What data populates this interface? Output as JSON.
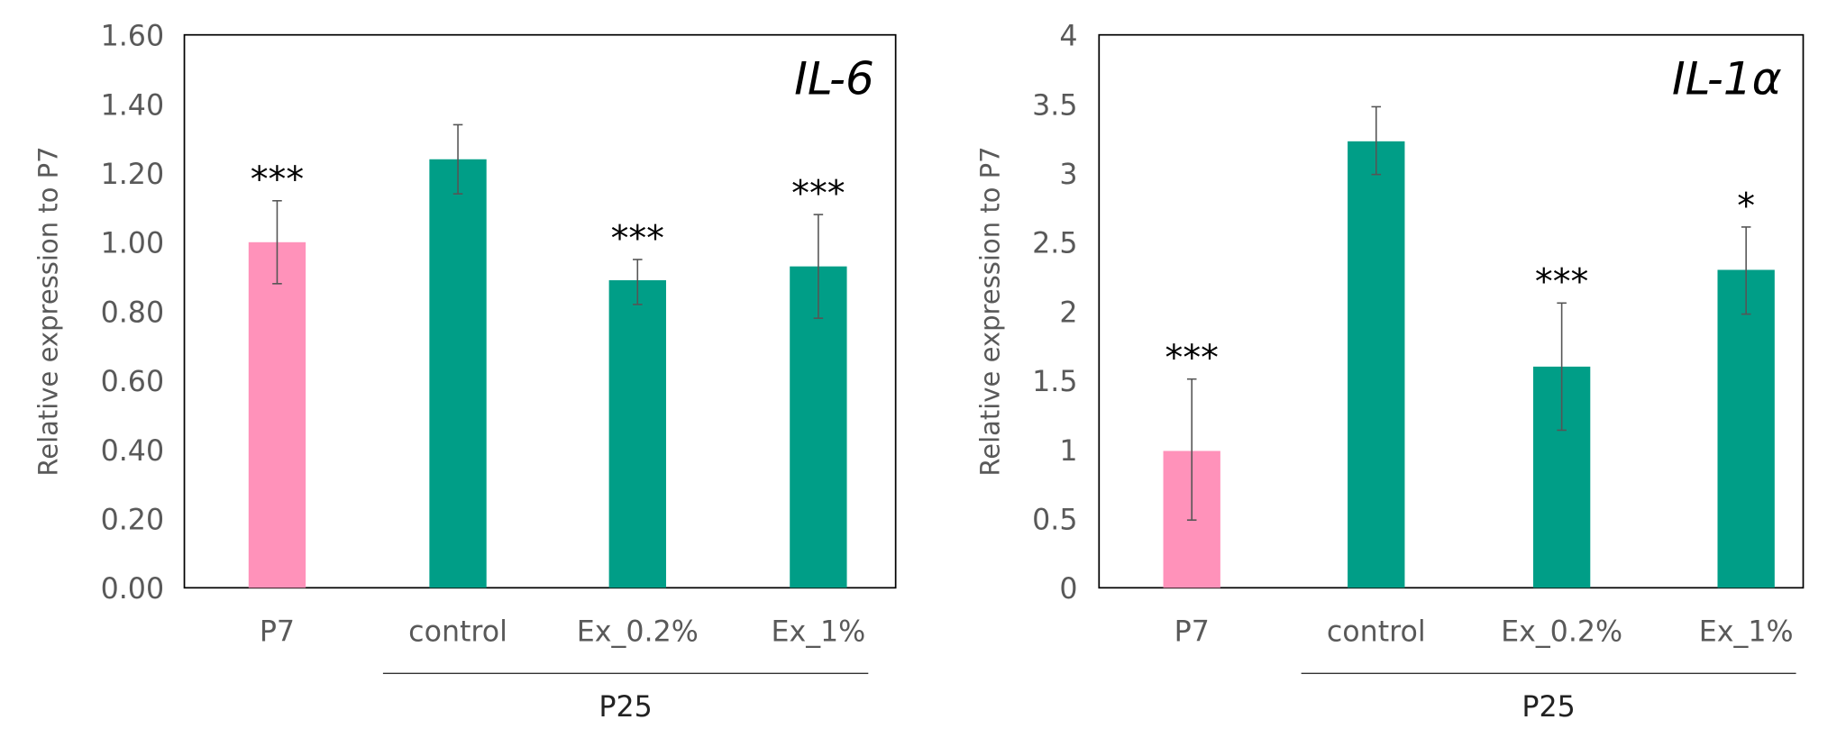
{
  "colors": {
    "reference": "#FF92BA",
    "treated": "#009E87",
    "error_bar": "#555555",
    "axis": "#000000"
  },
  "chart_data": [
    {
      "type": "bar",
      "title": "IL-6",
      "ylabel": "Relative expression to P7",
      "ylim": [
        0,
        1.6
      ],
      "yticks": [
        "0.00",
        "0.20",
        "0.40",
        "0.60",
        "0.80",
        "1.00",
        "1.20",
        "1.40",
        "1.60"
      ],
      "ytick_values": [
        0,
        0.2,
        0.4,
        0.6,
        0.8,
        1.0,
        1.2,
        1.4,
        1.6
      ],
      "categories": [
        "P7",
        "control",
        "Ex_0.2%",
        "Ex_1%"
      ],
      "group_label": "P25",
      "group_members": [
        "control",
        "Ex_0.2%",
        "Ex_1%"
      ],
      "values": [
        1.0,
        1.24,
        0.89,
        0.93
      ],
      "error_upper": [
        1.12,
        1.34,
        0.95,
        1.08
      ],
      "error_lower": [
        0.88,
        1.14,
        0.82,
        0.78
      ],
      "bar_colors": [
        "reference",
        "treated",
        "treated",
        "treated"
      ],
      "significance": [
        "***",
        "",
        "***",
        "***"
      ],
      "grid": false
    },
    {
      "type": "bar",
      "title": "IL-1α",
      "ylabel": "Relative expression to P7",
      "ylim": [
        0,
        4
      ],
      "yticks": [
        "0",
        "0.5",
        "1",
        "1.5",
        "2",
        "2.5",
        "3",
        "3.5",
        "4"
      ],
      "ytick_values": [
        0,
        0.5,
        1,
        1.5,
        2,
        2.5,
        3,
        3.5,
        4
      ],
      "categories": [
        "P7",
        "control",
        "Ex_0.2%",
        "Ex_1%"
      ],
      "group_label": "P25",
      "group_members": [
        "control",
        "Ex_0.2%",
        "Ex_1%"
      ],
      "values": [
        0.99,
        3.23,
        1.6,
        2.3
      ],
      "error_upper": [
        1.51,
        3.48,
        2.06,
        2.61
      ],
      "error_lower": [
        0.49,
        2.99,
        1.14,
        1.98
      ],
      "bar_colors": [
        "reference",
        "treated",
        "treated",
        "treated"
      ],
      "significance": [
        "***",
        "",
        "***",
        "*"
      ],
      "grid": false
    }
  ]
}
